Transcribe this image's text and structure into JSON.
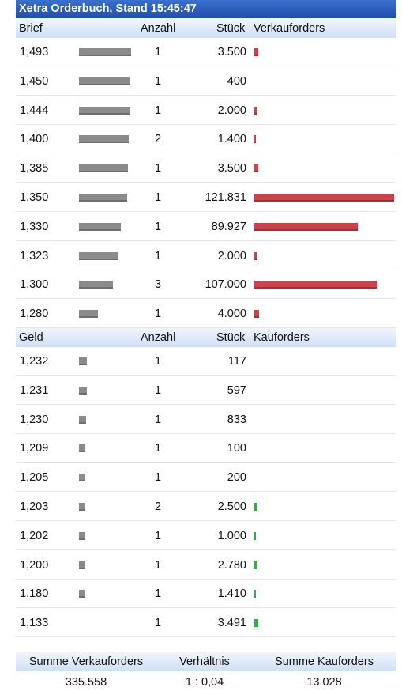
{
  "title": "Xetra Orderbuch, Stand 15:45:47",
  "ask_header": {
    "price": "Brief",
    "count": "Anzahl",
    "qty": "Stück",
    "orders": "Verkauforders"
  },
  "bid_header": {
    "price": "Geld",
    "count": "Anzahl",
    "qty": "Stück",
    "orders": "Kauforders"
  },
  "ask_rows": [
    {
      "price": "1,493",
      "count": "1",
      "qty": "3.500",
      "qty_value": 3500,
      "cum": 129741
    },
    {
      "price": "1,450",
      "count": "1",
      "qty": "400",
      "qty_value": 400,
      "cum": 126241
    },
    {
      "price": "1,444",
      "count": "1",
      "qty": "2.000",
      "qty_value": 2000,
      "cum": 125841
    },
    {
      "price": "1,400",
      "count": "2",
      "qty": "1.400",
      "qty_value": 1400,
      "cum": 123841
    },
    {
      "price": "1,385",
      "count": "1",
      "qty": "3.500",
      "qty_value": 3500,
      "cum": 122441
    },
    {
      "price": "1,350",
      "count": "1",
      "qty": "121.831",
      "qty_value": 121831,
      "cum": 118941
    },
    {
      "price": "1,330",
      "count": "1",
      "qty": "89.927",
      "qty_value": 89927,
      "cum": 104000
    },
    {
      "price": "1,323",
      "count": "1",
      "qty": "2.000",
      "qty_value": 2000,
      "cum": 98000
    },
    {
      "price": "1,300",
      "count": "3",
      "qty": "107.000",
      "qty_value": 107000,
      "cum": 85000
    },
    {
      "price": "1,280",
      "count": "1",
      "qty": "4.000",
      "qty_value": 4000,
      "cum": 48000
    }
  ],
  "bid_rows": [
    {
      "price": "1,232",
      "count": "1",
      "qty": "117",
      "qty_value": 117,
      "cum": 20000
    },
    {
      "price": "1,231",
      "count": "1",
      "qty": "597",
      "qty_value": 597,
      "cum": 19800
    },
    {
      "price": "1,230",
      "count": "1",
      "qty": "833",
      "qty_value": 833,
      "cum": 17500
    },
    {
      "price": "1,209",
      "count": "1",
      "qty": "100",
      "qty_value": 100,
      "cum": 14500
    },
    {
      "price": "1,205",
      "count": "1",
      "qty": "200",
      "qty_value": 200,
      "cum": 14500
    },
    {
      "price": "1,203",
      "count": "2",
      "qty": "2.500",
      "qty_value": 2500,
      "cum": 13500
    },
    {
      "price": "1,202",
      "count": "1",
      "qty": "1.000",
      "qty_value": 1000,
      "cum": 12500
    },
    {
      "price": "1,200",
      "count": "1",
      "qty": "2.780",
      "qty_value": 2780,
      "cum": 12500
    },
    {
      "price": "1,180",
      "count": "1",
      "qty": "1.410",
      "qty_value": 1410,
      "cum": 9500
    },
    {
      "price": "1,133",
      "count": "1",
      "qty": "3.491",
      "qty_value": 3491,
      "cum": 0
    }
  ],
  "summary": {
    "sell_label": "Summe Verkauforders",
    "ratio_label": "Verhältnis",
    "buy_label": "Summe Kauforders",
    "sell_value": "335.558",
    "ratio_value": "1 : 0,04",
    "buy_value": "13.028"
  },
  "colors": {
    "title_bg": "#2a5bbd",
    "ask_bar": "#c9444a",
    "bid_bar": "#3aa84a",
    "depth_bar": "#8b8b8b"
  }
}
